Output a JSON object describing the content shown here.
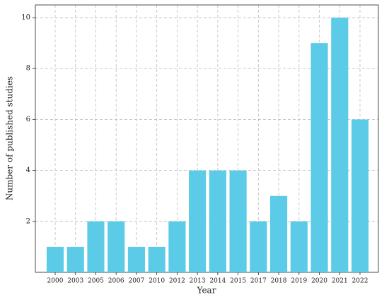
{
  "chart_data": {
    "type": "bar",
    "x_label": "Year",
    "y_label": "Number of published studies",
    "categories": [
      "2000",
      "2003",
      "2005",
      "2006",
      "2007",
      "2010",
      "2012",
      "2013",
      "2014",
      "2015",
      "2017",
      "2018",
      "2019",
      "2020",
      "2021",
      "2022"
    ],
    "values": [
      1,
      1,
      2,
      2,
      1,
      1,
      2,
      4,
      4,
      4,
      2,
      3,
      2,
      9,
      10,
      6
    ],
    "color": "#5bcbe8",
    "ylim": [
      0,
      10.5
    ],
    "yticks": [
      2,
      4,
      6,
      8,
      10
    ],
    "grid": true
  }
}
